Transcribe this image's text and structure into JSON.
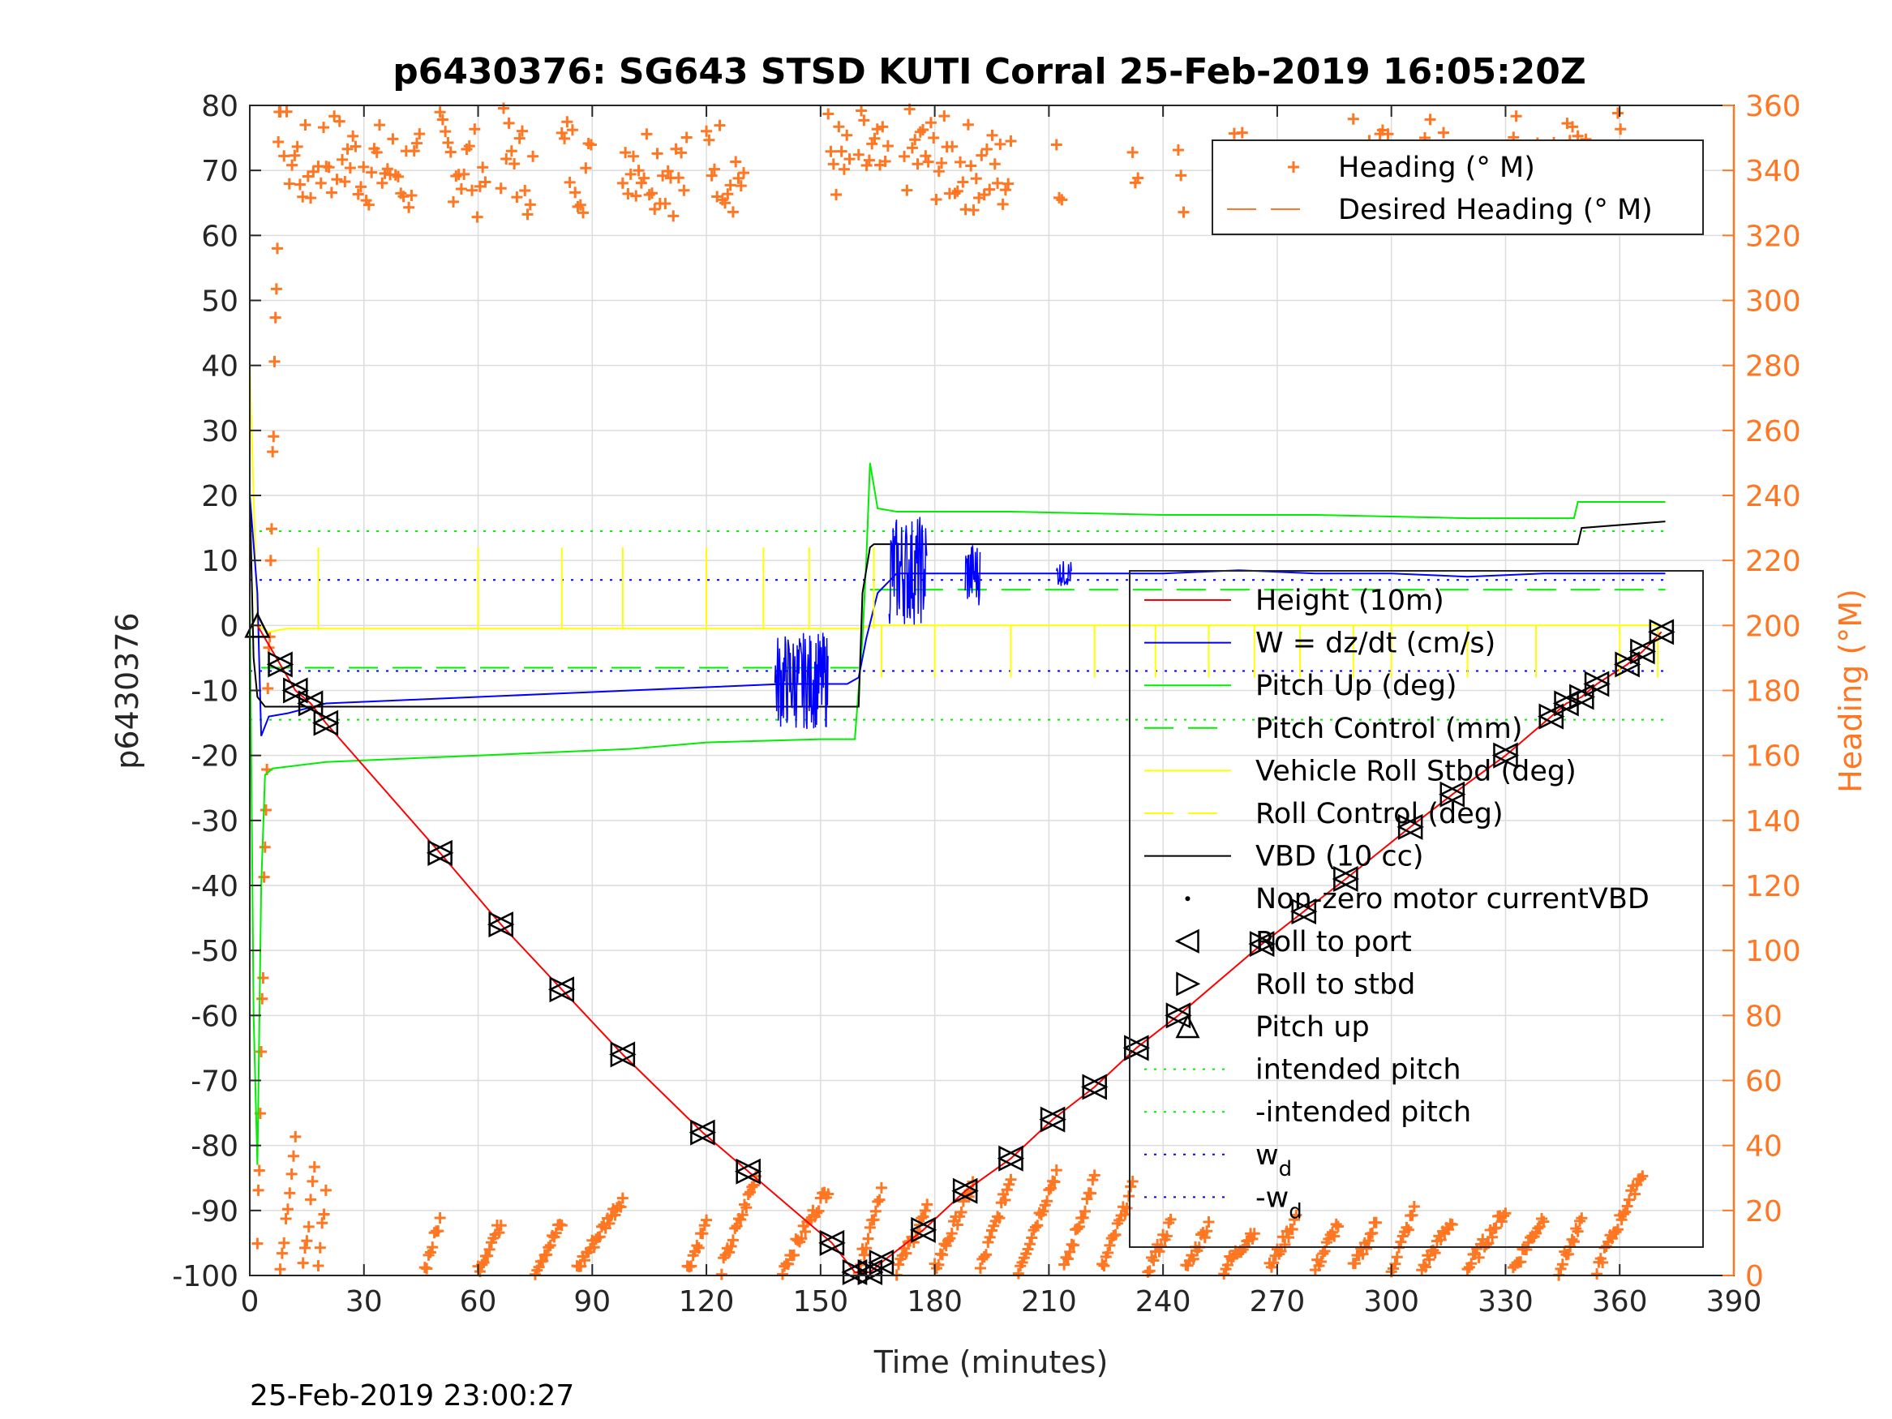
{
  "chart_data": {
    "type": "line",
    "title": "p6430376: SG643 STSD KUTI Corral 25-Feb-2019 16:05:20Z",
    "xlabel": "Time (minutes)",
    "ylabel": "p6430376",
    "y2label": "Heading (°M)",
    "footer": "25-Feb-2019 23:00:27",
    "xlim": [
      0,
      390
    ],
    "ylim": [
      -100,
      80
    ],
    "y2lim": [
      0,
      360
    ],
    "xticks": [
      "0",
      "30",
      "60",
      "90",
      "120",
      "150",
      "180",
      "210",
      "240",
      "270",
      "300",
      "330",
      "360",
      "390"
    ],
    "yticks": [
      "80",
      "70",
      "60",
      "50",
      "40",
      "30",
      "20",
      "10",
      "0",
      "-10",
      "-20",
      "-30",
      "-40",
      "-50",
      "-60",
      "-70",
      "-80",
      "-90",
      "-100"
    ],
    "y2ticks": [
      "360",
      "340",
      "320",
      "300",
      "280",
      "260",
      "240",
      "220",
      "200",
      "180",
      "160",
      "140",
      "120",
      "100",
      "80",
      "60",
      "40",
      "20",
      "0"
    ],
    "grid": true,
    "colors": {
      "height": "#ff0000",
      "w": "#0000ff",
      "pitch": "#00ee00",
      "roll": "#ffff00",
      "vbd": "#000000",
      "heading": "#ff7722",
      "right_axis": "#ff7722"
    },
    "legend_heading": [
      {
        "label": "Heading (° M)",
        "style": "plus",
        "color": "#ff7722"
      },
      {
        "label": "Desired Heading (° M)",
        "style": "dash",
        "color": "#ff7722"
      }
    ],
    "legend_heading_placement": "top-right",
    "legend_main": [
      {
        "label": "Height (10m)",
        "style": "line",
        "color": "#ff0000"
      },
      {
        "label": "W = dz/dt (cm/s)",
        "style": "line",
        "color": "#0000ff"
      },
      {
        "label": "Pitch Up (deg)",
        "style": "line",
        "color": "#00ee00"
      },
      {
        "label": "Pitch Control (mm)",
        "style": "dash",
        "color": "#00ee00"
      },
      {
        "label": "Vehicle Roll Stbd (deg)",
        "style": "line",
        "color": "#ffff00"
      },
      {
        "label": "Roll Control (deg)",
        "style": "dash",
        "color": "#ffff00"
      },
      {
        "label": "VBD (10 cc)",
        "style": "line",
        "color": "#000000"
      },
      {
        "label": "Non-zero motor currentVBD",
        "style": "dot",
        "color": "#000000"
      },
      {
        "label": "Roll to port",
        "style": "tri-left",
        "color": "#000000"
      },
      {
        "label": "Roll to stbd",
        "style": "tri-right",
        "color": "#000000"
      },
      {
        "label": "Pitch up",
        "style": "tri-up",
        "color": "#000000"
      },
      {
        "label": "intended pitch",
        "style": "dotted",
        "color": "#00ee00"
      },
      {
        "label": "-intended pitch",
        "style": "dotted",
        "color": "#00ee00"
      },
      {
        "label": "w",
        "sub": "d",
        "style": "dotted",
        "color": "#0000ff"
      },
      {
        "label": "-w",
        "sub": "d",
        "style": "dotted",
        "color": "#0000ff"
      }
    ],
    "legend_main_placement": "right",
    "reference_lines": {
      "intended_pitch": 14.5,
      "neg_intended_pitch": -14.5,
      "w_d": 7,
      "neg_w_d": -7,
      "pitch_control_dive": -6.5,
      "pitch_control_climb": 5.5
    },
    "series": [
      {
        "name": "Height (10m)",
        "x": [
          0,
          2,
          8,
          12,
          16,
          20,
          50,
          66,
          82,
          98,
          119,
          131,
          153,
          159,
          163,
          166,
          177,
          188,
          200,
          211,
          222,
          233,
          244,
          266,
          277,
          288,
          305,
          316,
          330,
          342,
          346,
          350,
          354,
          362,
          366,
          371
        ],
        "y": [
          0,
          0,
          -6,
          -10,
          -12,
          -15,
          -35,
          -46,
          -56,
          -66,
          -78,
          -84,
          -95,
          -99.5,
          -99.5,
          -98,
          -93,
          -87,
          -82,
          -76,
          -71,
          -65,
          -60,
          -49,
          -44,
          -39,
          -31,
          -26,
          -20,
          -14,
          -12,
          -11,
          -9,
          -6,
          -4,
          -1
        ]
      },
      {
        "name": "W = dz/dt (cm/s)",
        "x": [
          0,
          2,
          3,
          5,
          10,
          20,
          40,
          60,
          80,
          100,
          120,
          140,
          150,
          157,
          160,
          162,
          165,
          170,
          180,
          200,
          220,
          240,
          260,
          280,
          300,
          320,
          340,
          360,
          372
        ],
        "y": [
          20,
          5,
          -17,
          -14,
          -13.5,
          -12,
          -11.5,
          -11,
          -10.5,
          -10,
          -9.5,
          -9,
          -9,
          -9,
          -8,
          -2,
          5,
          8,
          8,
          8,
          8,
          8,
          8.5,
          8,
          8,
          7.5,
          8,
          8,
          8
        ]
      },
      {
        "name": "Pitch Up (deg)",
        "x": [
          0,
          1,
          2,
          3,
          4,
          6,
          20,
          60,
          100,
          120,
          150,
          159,
          161,
          162,
          163,
          165,
          170,
          200,
          240,
          280,
          320,
          348,
          349,
          372
        ],
        "y": [
          5,
          -60,
          -83,
          -40,
          -23,
          -22,
          -21,
          -20,
          -19,
          -18,
          -17.5,
          -17.5,
          -2,
          10,
          25,
          18,
          17.5,
          17.5,
          17,
          17,
          16.5,
          16.5,
          19,
          19
        ]
      },
      {
        "name": "VBD (10 cc)",
        "x": [
          0,
          1,
          2,
          4,
          30,
          60,
          159,
          160,
          161,
          163,
          164,
          349,
          350,
          372
        ],
        "y": [
          20,
          -5,
          -11,
          -12.5,
          -12.5,
          -12.5,
          -12.5,
          -12.5,
          5,
          12,
          12.5,
          12.5,
          15,
          16
        ]
      },
      {
        "name": "Vehicle Roll Stbd (deg)",
        "x": [
          0,
          2,
          5,
          10,
          60,
          120,
          160,
          164,
          200,
          260,
          320,
          372
        ],
        "y": [
          40,
          0,
          -1,
          -0.5,
          -0.5,
          -0.5,
          -0.5,
          0,
          0,
          0,
          0,
          0
        ]
      },
      {
        "name": "Heading (° M)",
        "note_points_per_leg": "sawtooth"
      }
    ]
  }
}
